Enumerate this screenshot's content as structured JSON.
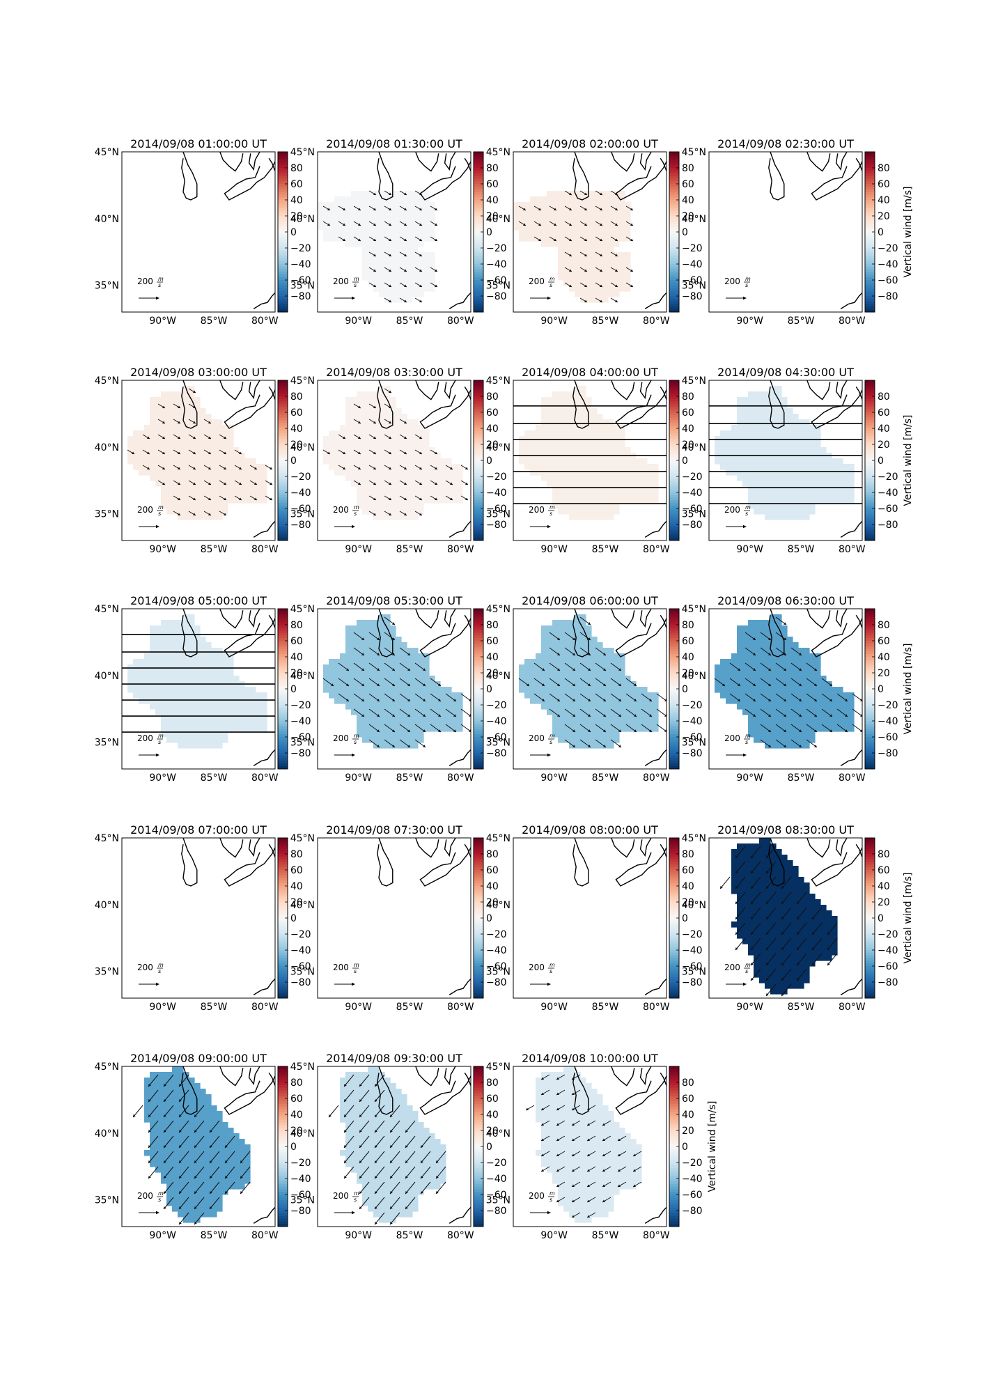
{
  "figure": {
    "panel_time_format": "YYYY/MM/DD HH:MM:SS UT"
  },
  "chart_data": {
    "type": "heatmap",
    "description_fields": "Grid of map panels showing vertical wind (color) and horizontal wind vectors (arrows) over the Great Lakes region",
    "panels": [
      {
        "title": "2014/09/08 01:00:00 UT",
        "vertical_wind": null,
        "region": "none",
        "arrow_direction": "none"
      },
      {
        "title": "2014/09/08 01:30:00 UT",
        "vertical_wind": -2,
        "region": "A",
        "arrow_direction": "se"
      },
      {
        "title": "2014/09/08 02:00:00 UT",
        "vertical_wind": 8,
        "region": "A",
        "arrow_direction": "se"
      },
      {
        "title": "2014/09/08 02:30:00 UT",
        "vertical_wind": null,
        "region": "none",
        "arrow_direction": "none"
      },
      {
        "title": "2014/09/08 03:00:00 UT",
        "vertical_wind": 8,
        "region": "B",
        "arrow_direction": "se"
      },
      {
        "title": "2014/09/08 03:30:00 UT",
        "vertical_wind": 4,
        "region": "B",
        "arrow_direction": "se"
      },
      {
        "title": "2014/09/08 04:00:00 UT",
        "vertical_wind": 6,
        "region": "B",
        "arrow_direction": "none",
        "striped": true
      },
      {
        "title": "2014/09/08 04:30:00 UT",
        "vertical_wind": -15,
        "region": "B",
        "arrow_direction": "none",
        "striped": true
      },
      {
        "title": "2014/09/08 05:00:00 UT",
        "vertical_wind": -15,
        "region": "B",
        "arrow_direction": "none",
        "striped": true
      },
      {
        "title": "2014/09/08 05:30:00 UT",
        "vertical_wind": -40,
        "region": "B",
        "arrow_direction": "se-strong"
      },
      {
        "title": "2014/09/08 06:00:00 UT",
        "vertical_wind": -40,
        "region": "B",
        "arrow_direction": "se-strong"
      },
      {
        "title": "2014/09/08 06:30:00 UT",
        "vertical_wind": -55,
        "region": "B",
        "arrow_direction": "se-strong"
      },
      {
        "title": "2014/09/08 07:00:00 UT",
        "vertical_wind": null,
        "region": "none",
        "arrow_direction": "none"
      },
      {
        "title": "2014/09/08 07:30:00 UT",
        "vertical_wind": null,
        "region": "none",
        "arrow_direction": "none"
      },
      {
        "title": "2014/09/08 08:00:00 UT",
        "vertical_wind": null,
        "region": "none",
        "arrow_direction": "none"
      },
      {
        "title": "2014/09/08 08:30:00 UT",
        "vertical_wind": -100,
        "region": "C",
        "arrow_direction": "sw-strong"
      },
      {
        "title": "2014/09/08 09:00:00 UT",
        "vertical_wind": -55,
        "region": "C",
        "arrow_direction": "sw-strong"
      },
      {
        "title": "2014/09/08 09:30:00 UT",
        "vertical_wind": -25,
        "region": "C",
        "arrow_direction": "sw-strong"
      },
      {
        "title": "2014/09/08 10:00:00 UT",
        "vertical_wind": -15,
        "region": "C",
        "arrow_direction": "sw"
      }
    ],
    "map_axes": {
      "lon_ticks": [
        "90°W",
        "85°W",
        "80°W"
      ],
      "lat_ticks": [
        "45°N",
        "40°N",
        "35°N"
      ],
      "lon_range": [
        -94,
        -79
      ],
      "lat_range": [
        33,
        45
      ]
    },
    "colorbar": {
      "ticks": [
        80,
        60,
        40,
        20,
        0,
        -20,
        -40,
        -60,
        -80
      ],
      "tick_labels": [
        "80",
        "60",
        "40",
        "20",
        "0",
        "−20",
        "−40",
        "−60",
        "−80"
      ],
      "range": [
        -100,
        100
      ],
      "label": "Vertical wind [m/s]",
      "colormap": "RdBu_r",
      "colors": [
        "#053061",
        "#2166ac",
        "#4393c3",
        "#92c5de",
        "#d1e5f0",
        "#f7f7f7",
        "#fddbc7",
        "#f4a582",
        "#d6604d",
        "#b2182b",
        "#67001f"
      ]
    },
    "reference_arrow": {
      "value": "200",
      "units_numerator": "m",
      "units_denominator": "s"
    }
  }
}
